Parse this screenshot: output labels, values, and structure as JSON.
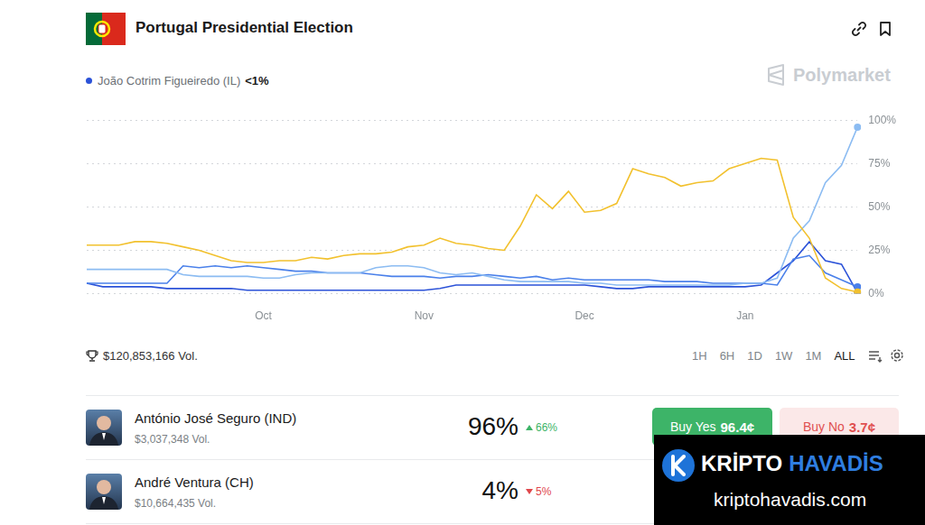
{
  "header": {
    "title": "Portugal Presidential Election"
  },
  "brand": "Polymarket",
  "chart_data": {
    "type": "line",
    "categories": [
      null,
      null,
      null,
      null,
      null,
      null,
      null,
      null,
      null,
      null,
      null,
      "Oct",
      null,
      null,
      null,
      null,
      null,
      null,
      null,
      null,
      null,
      "Nov",
      null,
      null,
      null,
      null,
      null,
      null,
      null,
      null,
      null,
      "Dec",
      null,
      null,
      null,
      null,
      null,
      null,
      null,
      null,
      null,
      "Jan",
      null,
      null,
      null,
      null,
      null,
      null,
      null
    ],
    "series": [
      {
        "color": "#f2c12e",
        "values": [
          28,
          28,
          28,
          30,
          30,
          29,
          27,
          25,
          22,
          19,
          18,
          18,
          19,
          19,
          21,
          20,
          22,
          23,
          23,
          24,
          27,
          28,
          32,
          29,
          28,
          26,
          25,
          39,
          57,
          49,
          59,
          47,
          48,
          52,
          72,
          69,
          67,
          62,
          64,
          65,
          72,
          75,
          78,
          77,
          44,
          32,
          9,
          3,
          1
        ]
      },
      {
        "color": "#8cbcf2",
        "values": [
          14,
          14,
          14,
          14,
          14,
          14,
          11,
          10,
          10,
          10,
          10,
          9,
          9,
          11,
          12,
          12,
          12,
          12,
          15,
          16,
          16,
          15,
          12,
          11,
          12,
          10,
          8,
          7,
          7,
          7,
          7,
          6,
          6,
          5,
          5,
          5,
          5,
          5,
          5,
          5,
          5,
          6,
          6,
          9,
          32,
          42,
          64,
          74,
          96
        ]
      },
      {
        "color": "#4a80ea",
        "values": [
          6,
          6,
          6,
          6,
          6,
          6,
          16,
          15,
          16,
          15,
          16,
          15,
          14,
          13,
          13,
          12,
          12,
          12,
          11,
          10,
          10,
          10,
          9,
          10,
          10,
          11,
          10,
          9,
          10,
          8,
          9,
          8,
          8,
          8,
          8,
          8,
          7,
          7,
          7,
          6,
          6,
          6,
          6,
          5,
          20,
          22,
          12,
          8,
          4
        ]
      },
      {
        "name": "João Cotrim Figueiredo (IL)",
        "color": "#2b52d8",
        "values": [
          6,
          4,
          4,
          4,
          4,
          3,
          3,
          3,
          3,
          3,
          2,
          2,
          2,
          2,
          2,
          2,
          2,
          2,
          2,
          2,
          2,
          2,
          3,
          5,
          5,
          5,
          5,
          5,
          5,
          5,
          5,
          5,
          4,
          3,
          3,
          4,
          4,
          4,
          4,
          4,
          4,
          4,
          5,
          12,
          19,
          30,
          19,
          17,
          0.5
        ]
      }
    ],
    "annotations": [
      {
        "text": "<1%",
        "series": "João Cotrim Figueiredo (IL)"
      }
    ],
    "ylim": [
      0,
      100
    ],
    "yticks": [
      {
        "value": 0,
        "label": "0%"
      },
      {
        "value": 25,
        "label": "25%"
      },
      {
        "value": 50,
        "label": "50%"
      },
      {
        "value": 75,
        "label": "75%"
      },
      {
        "value": 100,
        "label": "100%"
      }
    ],
    "grid": true,
    "legend": "top-left"
  },
  "summary": {
    "volume": "$120,853,166 Vol.",
    "ranges": [
      "1H",
      "6H",
      "1D",
      "1W",
      "1M",
      "ALL"
    ],
    "selected_range": "ALL"
  },
  "outcomes": [
    {
      "name": "António José Seguro (IND)",
      "volume": "$3,037,348 Vol.",
      "chance": "96%",
      "change": "66%",
      "direction": "up",
      "buy_yes": "Buy Yes",
      "yes_price": "96.4¢",
      "buy_no": "Buy No",
      "no_price": "3.7¢"
    },
    {
      "name": "André Ventura (CH)",
      "volume": "$10,664,435 Vol.",
      "chance": "4%",
      "change": "5%",
      "direction": "down"
    }
  ],
  "watermark": {
    "brand_left": "KRİPTO",
    "brand_right": "HAVADİS",
    "url": "kriptohavadis.com"
  }
}
